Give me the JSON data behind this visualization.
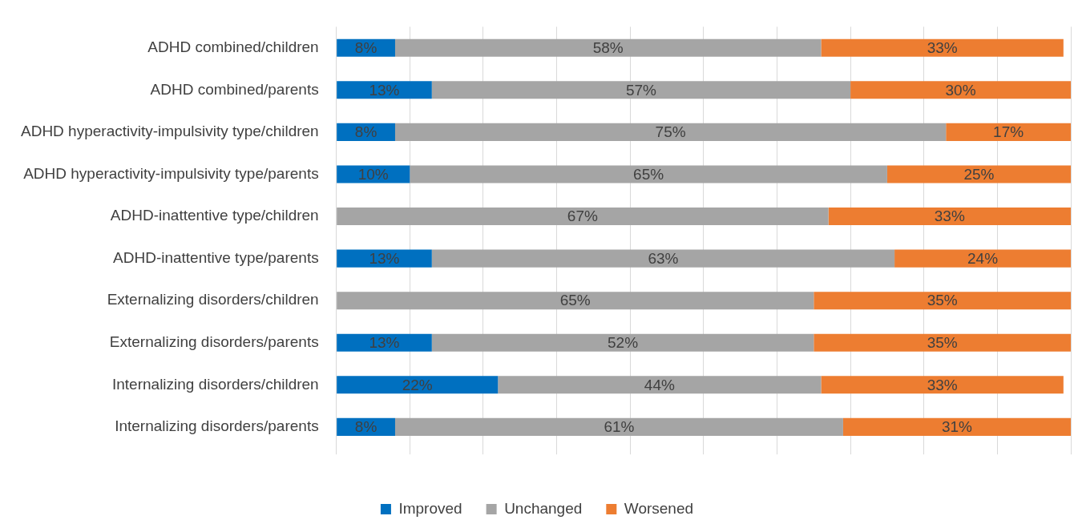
{
  "chart_data": {
    "type": "bar",
    "orientation": "horizontal",
    "stacked": true,
    "categories": [
      "ADHD combined/children",
      "ADHD combined/parents",
      "ADHD hyperactivity-impulsivity type/children",
      "ADHD hyperactivity-impulsivity type/parents",
      "ADHD-inattentive type/children",
      "ADHD-inattentive type/parents",
      "Externalizing disorders/children",
      "Externalizing disorders/parents",
      "Internalizing disorders/children",
      "Internalizing disorders/parents"
    ],
    "series": [
      {
        "name": "Improved",
        "color": "#0070c0",
        "values": [
          8,
          13,
          8,
          10,
          null,
          13,
          null,
          13,
          22,
          8
        ],
        "value_labels": [
          "8%",
          "13%",
          "8%",
          "10%",
          null,
          "13%",
          null,
          "13%",
          "22%",
          "8%"
        ]
      },
      {
        "name": "Unchanged",
        "color": "#a5a5a5",
        "values": [
          58,
          57,
          75,
          65,
          67,
          63,
          65,
          52,
          44,
          61
        ],
        "value_labels": [
          "58%",
          "57%",
          "75%",
          "65%",
          "67%",
          "63%",
          "65%",
          "52%",
          "44%",
          "61%"
        ]
      },
      {
        "name": "Worsened",
        "color": "#ed7d31",
        "values": [
          33,
          30,
          17,
          25,
          33,
          24,
          35,
          35,
          33,
          31
        ],
        "value_labels": [
          "33%",
          "30%",
          "17%",
          "25%",
          "33%",
          "24%",
          "35%",
          "35%",
          "33%",
          "31%"
        ]
      }
    ],
    "xlim": [
      0,
      100
    ],
    "xticks": [
      {
        "value": 0,
        "label": null
      },
      {
        "value": 10,
        "label": null
      },
      {
        "value": 20,
        "label": null
      },
      {
        "value": 30,
        "label": null
      },
      {
        "value": 40,
        "label": null
      },
      {
        "value": 50,
        "label": null
      },
      {
        "value": 60,
        "label": null
      },
      {
        "value": 70,
        "label": null
      },
      {
        "value": 80,
        "label": null
      },
      {
        "value": 90,
        "label": null
      },
      {
        "value": 100,
        "label": null
      }
    ],
    "tick_labels": "y",
    "grid": "x",
    "legend": "bottom"
  }
}
